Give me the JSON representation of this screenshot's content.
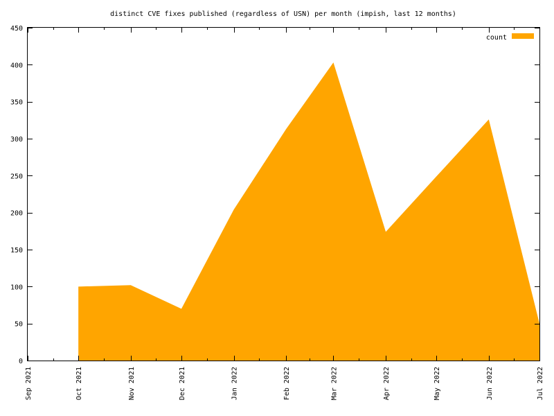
{
  "chart_data": {
    "type": "area",
    "title": "distinct CVE fixes published (regardless of USN) per month (impish, last 12 months)",
    "xlabel": "",
    "ylabel": "",
    "ylim": [
      0,
      450
    ],
    "yticks": [
      0,
      50,
      100,
      150,
      200,
      250,
      300,
      350,
      400,
      450
    ],
    "xlim": [
      "2021-09-01",
      "2022-07-01"
    ],
    "xticks": [
      {
        "date": "2021-09-01",
        "label": "Sep 2021"
      },
      {
        "date": "2021-10-01",
        "label": "Oct 2021"
      },
      {
        "date": "2021-11-01",
        "label": "Nov 2021"
      },
      {
        "date": "2021-12-01",
        "label": "Dec 2021"
      },
      {
        "date": "2022-01-01",
        "label": "Jan 2022"
      },
      {
        "date": "2022-02-01",
        "label": "Feb 2022"
      },
      {
        "date": "2022-03-01",
        "label": "Mar 2022"
      },
      {
        "date": "2022-04-01",
        "label": "Apr 2022"
      },
      {
        "date": "2022-05-01",
        "label": "May 2022"
      },
      {
        "date": "2022-06-01",
        "label": "Jun 2022"
      },
      {
        "date": "2022-07-01",
        "label": "Jul 2022"
      }
    ],
    "grid": false,
    "legend_position": "top-right",
    "series": [
      {
        "name": "count",
        "color": "#ffa500",
        "points": [
          {
            "x": "2021-10-01",
            "y": 100
          },
          {
            "x": "2021-11-01",
            "y": 102
          },
          {
            "x": "2021-12-01",
            "y": 70
          },
          {
            "x": "2022-01-01",
            "y": 204
          },
          {
            "x": "2022-02-01",
            "y": 313
          },
          {
            "x": "2022-03-01",
            "y": 403
          },
          {
            "x": "2022-04-01",
            "y": 174
          },
          {
            "x": "2022-05-01",
            "y": 249
          },
          {
            "x": "2022-06-01",
            "y": 326
          },
          {
            "x": "2022-07-01",
            "y": 50
          }
        ]
      }
    ]
  }
}
